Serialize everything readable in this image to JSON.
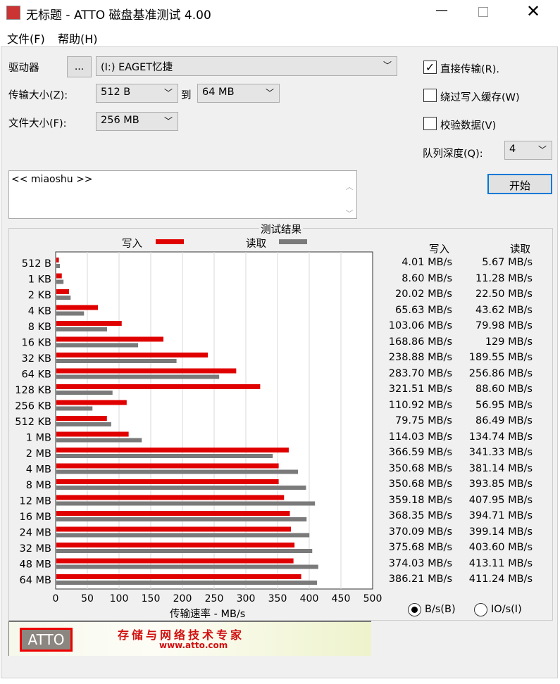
{
  "window": {
    "title": "无标题 - ATTO 磁盘基准测试 4.00",
    "logo_text": "ATTO"
  },
  "menu": [
    "文件(F)",
    "帮助(H)"
  ],
  "controls": {
    "drive_label": "驱动器",
    "browse_button": "...",
    "drive_value": "(I:) EAGET忆捷",
    "transfer_label": "传输大小(Z):",
    "transfer_from": "512 B",
    "to_label": "到",
    "transfer_to": "64 MB",
    "file_label": "文件大小(F):",
    "file_value": "256 MB",
    "direct_io": {
      "label": "直接传输(R).",
      "checked": true
    },
    "bypass_cache": {
      "label": "绕过写入缓存(W)",
      "checked": false
    },
    "verify": {
      "label": "校验数据(V)",
      "checked": false
    },
    "queue_label": "队列深度(Q):",
    "queue_value": "4",
    "start_button": "开始",
    "description": "<< miaoshu >>"
  },
  "results": {
    "title": "测试结果",
    "write_header": "写入",
    "read_header": "读取",
    "units": [
      {
        "label": "B/s(B)",
        "selected": true
      },
      {
        "label": "IO/s(I)",
        "selected": false
      }
    ]
  },
  "chart_data": {
    "type": "bar",
    "orientation": "horizontal",
    "xlabel": "传输速率 - MB/s",
    "xlim": [
      0,
      500
    ],
    "xticks": [
      0,
      50,
      100,
      150,
      200,
      250,
      300,
      350,
      400,
      450,
      500
    ],
    "grid": true,
    "legend": "top",
    "categories": [
      "512 B",
      "1 KB",
      "2 KB",
      "4 KB",
      "8 KB",
      "16 KB",
      "32 KB",
      "64 KB",
      "128 KB",
      "256 KB",
      "512 KB",
      "1 MB",
      "2 MB",
      "4 MB",
      "8 MB",
      "12 MB",
      "16 MB",
      "24 MB",
      "32 MB",
      "48 MB",
      "64 MB"
    ],
    "series": [
      {
        "name": "写入",
        "color": "#e00000",
        "values": [
          4.01,
          8.6,
          20.02,
          65.63,
          103.06,
          168.86,
          238.88,
          283.7,
          321.51,
          110.92,
          79.75,
          114.03,
          366.59,
          350.68,
          350.68,
          359.18,
          368.35,
          370.09,
          375.68,
          374.03,
          386.21
        ],
        "labels": [
          "4.01 MB/s",
          "8.60 MB/s",
          "20.02 MB/s",
          "65.63 MB/s",
          "103.06 MB/s",
          "168.86 MB/s",
          "238.88 MB/s",
          "283.70 MB/s",
          "321.51 MB/s",
          "110.92 MB/s",
          "79.75 MB/s",
          "114.03 MB/s",
          "366.59 MB/s",
          "350.68 MB/s",
          "350.68 MB/s",
          "359.18 MB/s",
          "368.35 MB/s",
          "370.09 MB/s",
          "375.68 MB/s",
          "374.03 MB/s",
          "386.21 MB/s"
        ]
      },
      {
        "name": "读取",
        "color": "#7a7a7a",
        "values": [
          5.67,
          11.28,
          22.5,
          43.62,
          79.98,
          129,
          189.55,
          256.86,
          88.6,
          56.95,
          86.49,
          134.74,
          341.33,
          381.14,
          393.85,
          407.95,
          394.71,
          399.14,
          403.6,
          413.11,
          411.24
        ],
        "labels": [
          "5.67 MB/s",
          "11.28 MB/s",
          "22.50 MB/s",
          "43.62 MB/s",
          "79.98 MB/s",
          "129 MB/s",
          "189.55 MB/s",
          "256.86 MB/s",
          "88.60 MB/s",
          "56.95 MB/s",
          "86.49 MB/s",
          "134.74 MB/s",
          "341.33 MB/s",
          "381.14 MB/s",
          "393.85 MB/s",
          "407.95 MB/s",
          "394.71 MB/s",
          "399.14 MB/s",
          "403.60 MB/s",
          "413.11 MB/s",
          "411.24 MB/s"
        ]
      }
    ]
  },
  "banner": {
    "logo": "ATTO",
    "slogan": "存储与网络技术专家",
    "url": "www.atto.com"
  }
}
